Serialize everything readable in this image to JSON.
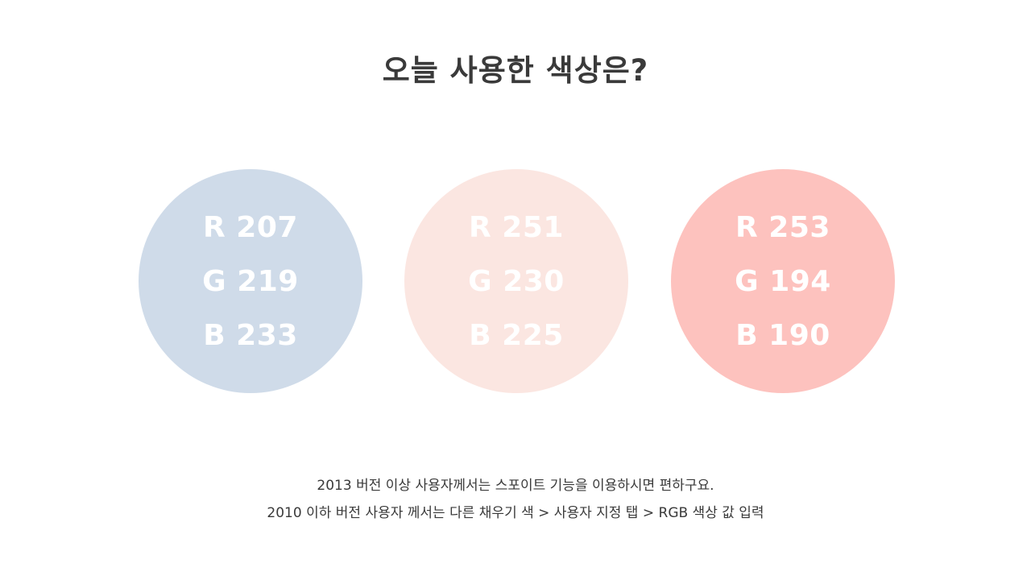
{
  "title": "오늘 사용한 색상은?",
  "swatches": [
    {
      "color": "#CFDBE9",
      "r": "R 207",
      "g": "G 219",
      "b": "B 233"
    },
    {
      "color": "#FBE6E1",
      "r": "R 251",
      "g": "G 230",
      "b": "B 225"
    },
    {
      "color": "#FDC2BE",
      "r": "R 253",
      "g": "G 194",
      "b": "B 190"
    }
  ],
  "notes": {
    "line1": "2013 버전 이상 사용자께서는 스포이트 기능을 이용하시면 편하구요.",
    "line2": "2010 이하 버전 사용자 께서는 다른 채우기 색 > 사용자 지정 탭 > RGB 색상 값 입력"
  }
}
